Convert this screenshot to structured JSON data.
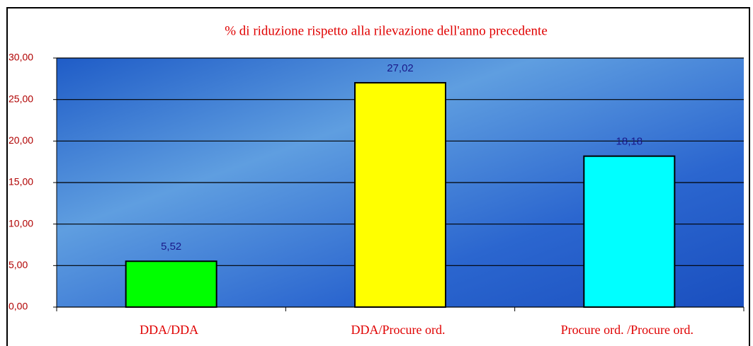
{
  "chart_data": {
    "type": "bar",
    "title": "% di riduzione rispetto alla rilevazione dell'anno precedente",
    "categories": [
      "DDA/DDA",
      "DDA/Procure ord.",
      "Procure ord. /Procure ord."
    ],
    "values": [
      5.52,
      27.02,
      18.18
    ],
    "value_labels": [
      "5,52",
      "27,02",
      "18,18"
    ],
    "colors": [
      "#00ff00",
      "#ffff00",
      "#00ffff"
    ],
    "ylim": [
      0,
      30
    ],
    "yticks": [
      {
        "value": 0,
        "label": "0,00"
      },
      {
        "value": 5,
        "label": "5,00"
      },
      {
        "value": 10,
        "label": "10,00"
      },
      {
        "value": 15,
        "label": "15,00"
      },
      {
        "value": 20,
        "label": "20,00"
      },
      {
        "value": 25,
        "label": "25,00"
      },
      {
        "value": 30,
        "label": "30,00"
      }
    ],
    "grid": true
  }
}
